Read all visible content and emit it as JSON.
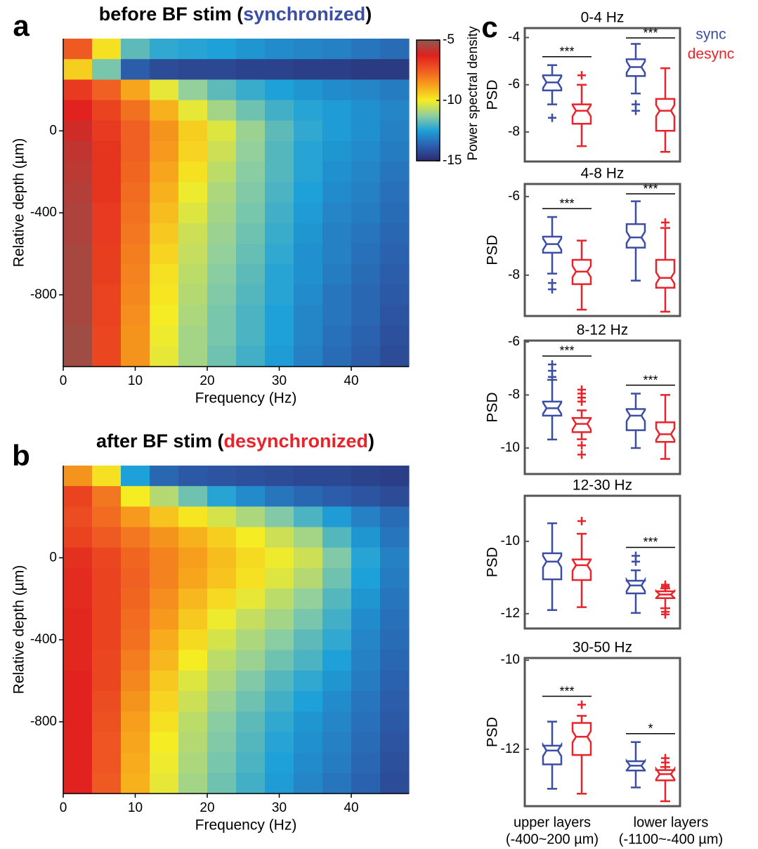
{
  "chart_data": [
    {
      "type": "heatmap",
      "panel_label": "a",
      "title": [
        "before BF stim (",
        "synchronized",
        ")"
      ],
      "title_colors": [
        "#000000",
        "#3b4ea3",
        "#000000"
      ],
      "xlabel": "Frequency (Hz)",
      "ylabel": "Relative depth (µm)",
      "xlim": [
        0,
        48
      ],
      "xticks": [
        0,
        10,
        20,
        30,
        40
      ],
      "ylim": [
        -1150,
        450
      ],
      "yticks": [
        0,
        -400,
        -800
      ],
      "clim": [
        -15,
        -5
      ],
      "colormap": [
        "#2b2a6e",
        "#2c5fae",
        "#1ea0d8",
        "#8fcfa0",
        "#f6ec23",
        "#f7a21c",
        "#ef5a22",
        "#e0201e",
        "#8b5a50"
      ],
      "colorbar": {
        "label": "Power spectral density",
        "ticks": [
          -5,
          -10,
          -15
        ]
      },
      "x": [
        2,
        6,
        10,
        14,
        18,
        22,
        26,
        30,
        34,
        38,
        42,
        46
      ],
      "y": [
        400,
        300,
        200,
        100,
        0,
        -100,
        -200,
        -300,
        -400,
        -500,
        -600,
        -700,
        -800,
        -900,
        -1000,
        -1100
      ],
      "z": [
        [
          -7.5,
          -9.8,
          -11.8,
          -12.3,
          -12.4,
          -12.5,
          -12.7,
          -12.9,
          -13.0,
          -13.1,
          -13.3,
          -13.5
        ],
        [
          -9.5,
          -11.5,
          -13.8,
          -14.2,
          -14.3,
          -14.3,
          -14.4,
          -14.4,
          -14.5,
          -14.5,
          -14.6,
          -14.6
        ],
        [
          -6.8,
          -7.6,
          -8.8,
          -10.2,
          -11.2,
          -11.8,
          -12.2,
          -12.5,
          -12.7,
          -12.9,
          -13.0,
          -13.2
        ],
        [
          -6.3,
          -7.0,
          -7.9,
          -9.0,
          -10.2,
          -11.0,
          -11.6,
          -12.1,
          -12.4,
          -12.6,
          -12.8,
          -13.0
        ],
        [
          -6.0,
          -6.8,
          -7.6,
          -8.5,
          -9.5,
          -10.3,
          -11.1,
          -11.8,
          -12.3,
          -12.6,
          -12.8,
          -13.1
        ],
        [
          -5.8,
          -6.7,
          -7.6,
          -8.6,
          -9.6,
          -10.5,
          -11.2,
          -11.9,
          -12.4,
          -12.7,
          -12.9,
          -13.2
        ],
        [
          -5.7,
          -6.7,
          -7.7,
          -8.8,
          -9.8,
          -10.7,
          -11.3,
          -11.9,
          -12.4,
          -12.8,
          -13.0,
          -13.3
        ],
        [
          -5.6,
          -6.7,
          -7.8,
          -9.0,
          -10.1,
          -10.9,
          -11.4,
          -12.0,
          -12.5,
          -12.9,
          -13.1,
          -13.4
        ],
        [
          -5.5,
          -6.8,
          -7.9,
          -9.2,
          -10.3,
          -11.0,
          -11.5,
          -12.1,
          -12.6,
          -13.0,
          -13.2,
          -13.5
        ],
        [
          -5.5,
          -6.8,
          -8.0,
          -9.4,
          -10.5,
          -11.1,
          -11.6,
          -12.2,
          -12.7,
          -13.1,
          -13.3,
          -13.6
        ],
        [
          -5.4,
          -6.9,
          -8.1,
          -9.6,
          -10.6,
          -11.2,
          -11.7,
          -12.3,
          -12.8,
          -13.1,
          -13.4,
          -13.7
        ],
        [
          -5.4,
          -6.9,
          -8.2,
          -9.8,
          -10.7,
          -11.3,
          -11.8,
          -12.4,
          -12.8,
          -13.2,
          -13.5,
          -13.8
        ],
        [
          -5.4,
          -7.0,
          -8.3,
          -9.9,
          -10.8,
          -11.4,
          -11.9,
          -12.4,
          -12.9,
          -13.3,
          -13.6,
          -13.9
        ],
        [
          -5.4,
          -7.0,
          -8.4,
          -10.0,
          -10.9,
          -11.5,
          -12.0,
          -12.5,
          -13.0,
          -13.3,
          -13.6,
          -14.0
        ],
        [
          -5.3,
          -7.1,
          -8.5,
          -10.1,
          -11.0,
          -11.5,
          -12.0,
          -12.5,
          -13.0,
          -13.4,
          -13.7,
          -14.1
        ],
        [
          -5.3,
          -7.1,
          -8.5,
          -10.2,
          -11.0,
          -11.6,
          -12.1,
          -12.6,
          -13.1,
          -13.5,
          -13.8,
          -14.2
        ]
      ]
    },
    {
      "type": "heatmap",
      "panel_label": "b",
      "title": [
        "after BF stim (",
        "desynchronized",
        ")"
      ],
      "title_colors": [
        "#000000",
        "#e8232a",
        "#000000"
      ],
      "xlabel": "Frequency (Hz)",
      "ylabel": "Relative depth (µm)",
      "xlim": [
        0,
        48
      ],
      "xticks": [
        0,
        10,
        20,
        30,
        40
      ],
      "ylim": [
        -1150,
        450
      ],
      "yticks": [
        0,
        -400,
        -800
      ],
      "clim": [
        -15,
        -5
      ],
      "colormap": [
        "#2b2a6e",
        "#2c5fae",
        "#1ea0d8",
        "#8fcfa0",
        "#f6ec23",
        "#f7a21c",
        "#ef5a22",
        "#e0201e",
        "#8b5a50"
      ],
      "x": [
        2,
        6,
        10,
        14,
        18,
        22,
        26,
        30,
        34,
        38,
        42,
        46
      ],
      "y": [
        400,
        300,
        200,
        100,
        0,
        -100,
        -200,
        -300,
        -400,
        -500,
        -600,
        -700,
        -800,
        -900,
        -1000,
        -1100
      ],
      "z": [
        [
          -8.5,
          -9.8,
          -12.5,
          -13.6,
          -13.9,
          -14.0,
          -14.1,
          -14.2,
          -14.3,
          -14.3,
          -14.4,
          -14.5
        ],
        [
          -7.0,
          -8.0,
          -10.0,
          -10.8,
          -11.6,
          -12.4,
          -12.9,
          -13.3,
          -13.6,
          -13.8,
          -14.0,
          -14.2
        ],
        [
          -7.2,
          -7.8,
          -8.6,
          -9.3,
          -9.9,
          -10.4,
          -10.9,
          -11.4,
          -12.0,
          -12.6,
          -13.1,
          -13.5
        ],
        [
          -7.0,
          -7.5,
          -8.0,
          -8.5,
          -9.0,
          -9.5,
          -10.0,
          -10.5,
          -11.0,
          -11.9,
          -12.7,
          -13.3
        ],
        [
          -6.6,
          -7.1,
          -7.7,
          -8.2,
          -8.7,
          -9.2,
          -9.7,
          -10.1,
          -10.5,
          -11.4,
          -12.4,
          -13.1
        ],
        [
          -6.5,
          -7.0,
          -7.6,
          -8.2,
          -8.8,
          -9.3,
          -9.8,
          -10.3,
          -10.8,
          -11.6,
          -12.5,
          -13.2
        ],
        [
          -6.5,
          -7.0,
          -7.7,
          -8.4,
          -9.1,
          -9.7,
          -10.2,
          -10.7,
          -11.2,
          -11.9,
          -12.7,
          -13.3
        ],
        [
          -6.4,
          -7.0,
          -7.8,
          -8.6,
          -9.4,
          -10.1,
          -10.6,
          -11.0,
          -11.5,
          -12.1,
          -12.9,
          -13.4
        ],
        [
          -6.4,
          -7.0,
          -7.9,
          -8.9,
          -9.7,
          -10.4,
          -10.9,
          -11.3,
          -11.8,
          -12.3,
          -13.0,
          -13.5
        ],
        [
          -6.4,
          -7.1,
          -8.1,
          -9.1,
          -10.0,
          -10.7,
          -11.1,
          -11.6,
          -12.0,
          -12.5,
          -13.1,
          -13.6
        ],
        [
          -6.3,
          -7.1,
          -8.3,
          -9.4,
          -10.3,
          -10.9,
          -11.4,
          -11.9,
          -12.3,
          -12.7,
          -13.2,
          -13.7
        ],
        [
          -6.3,
          -7.2,
          -8.5,
          -9.6,
          -10.5,
          -11.1,
          -11.6,
          -12.1,
          -12.5,
          -12.9,
          -13.3,
          -13.8
        ],
        [
          -6.3,
          -7.3,
          -8.7,
          -9.8,
          -10.7,
          -11.3,
          -11.8,
          -12.3,
          -12.7,
          -13.0,
          -13.4,
          -13.9
        ],
        [
          -6.3,
          -7.4,
          -8.8,
          -10.0,
          -10.8,
          -11.4,
          -11.9,
          -12.4,
          -12.8,
          -13.1,
          -13.5,
          -14.0
        ],
        [
          -6.3,
          -7.4,
          -8.9,
          -10.1,
          -10.9,
          -11.5,
          -12.0,
          -12.5,
          -12.9,
          -13.2,
          -13.6,
          -14.1
        ],
        [
          -6.3,
          -7.5,
          -9.0,
          -10.2,
          -11.0,
          -11.6,
          -12.1,
          -12.6,
          -13.0,
          -13.3,
          -13.7,
          -14.2
        ]
      ]
    },
    {
      "type": "box",
      "panel_label": "c",
      "title": "0-4 Hz",
      "ylabel": "PSD",
      "ylim": [
        -9.25,
        -3.6
      ],
      "yticks": [
        -8,
        -6,
        -4
      ],
      "significance": [
        "***",
        "***"
      ],
      "series": [
        {
          "name": "sync",
          "color": "#3b4ea3",
          "boxes": [
            {
              "whislo": -6.83,
              "q1": -6.24,
              "med": -5.9,
              "q3": -5.6,
              "whishi": -5.17,
              "fliers": [
                -7.4
              ]
            },
            {
              "whislo": -6.37,
              "q1": -5.63,
              "med": -5.25,
              "q3": -4.92,
              "whishi": -4.27,
              "fliers": [
                -6.83,
                -7.1
              ]
            }
          ]
        },
        {
          "name": "desync",
          "color": "#e8232a",
          "boxes": [
            {
              "whislo": -8.6,
              "q1": -7.65,
              "med": -7.1,
              "q3": -6.83,
              "whishi": -6.0,
              "fliers": [
                -5.6
              ]
            },
            {
              "whislo": -8.84,
              "q1": -7.95,
              "med": -7.1,
              "q3": -6.6,
              "whishi": -5.3,
              "fliers": []
            }
          ]
        }
      ]
    },
    {
      "type": "box",
      "title": "4-8 Hz",
      "ylabel": "PSD",
      "ylim": [
        -9.04,
        -5.68
      ],
      "yticks": [
        -8,
        -6
      ],
      "significance": [
        "***",
        "***"
      ],
      "series": [
        {
          "color": "#3b4ea3",
          "boxes": [
            {
              "whislo": -7.96,
              "q1": -7.43,
              "med": -7.21,
              "q3": -7.02,
              "whishi": -6.52,
              "fliers": [
                -8.2,
                -8.36
              ]
            },
            {
              "whislo": -8.14,
              "q1": -7.3,
              "med": -7.04,
              "q3": -6.7,
              "whishi": -6.12,
              "fliers": []
            }
          ]
        },
        {
          "color": "#e8232a",
          "boxes": [
            {
              "whislo": -8.88,
              "q1": -8.23,
              "med": -7.91,
              "q3": -7.61,
              "whishi": -7.12,
              "fliers": []
            },
            {
              "whislo": -8.93,
              "q1": -8.32,
              "med": -8.07,
              "q3": -7.61,
              "whishi": -6.8,
              "fliers": [
                -6.66
              ]
            }
          ]
        }
      ]
    },
    {
      "type": "box",
      "title": "8-12 Hz",
      "ylabel": "PSD",
      "ylim": [
        -10.98,
        -5.95
      ],
      "yticks": [
        -10,
        -8,
        -6
      ],
      "significance": [
        "***",
        "***"
      ],
      "series": [
        {
          "color": "#3b4ea3",
          "boxes": [
            {
              "whislo": -9.68,
              "q1": -8.78,
              "med": -8.5,
              "q3": -8.25,
              "whishi": -7.43,
              "fliers": [
                -6.85,
                -7.09,
                -7.32
              ]
            },
            {
              "whislo": -10.0,
              "q1": -9.33,
              "med": -8.78,
              "q3": -8.53,
              "whishi": -7.95,
              "fliers": []
            }
          ]
        },
        {
          "color": "#e8232a",
          "boxes": [
            {
              "whislo": -9.67,
              "q1": -9.4,
              "med": -9.09,
              "q3": -8.87,
              "whishi": -8.58,
              "fliers": [
                -7.8,
                -7.95,
                -8.1,
                -8.25,
                -9.9,
                -10.25
              ]
            },
            {
              "whislo": -10.41,
              "q1": -9.77,
              "med": -9.48,
              "q3": -9.03,
              "whishi": -8.0,
              "fliers": []
            }
          ]
        }
      ]
    },
    {
      "type": "box",
      "title": "12-30 Hz",
      "ylabel": "PSD",
      "ylim": [
        -12.41,
        -8.74
      ],
      "yticks": [
        -12,
        -10
      ],
      "significance": [
        null,
        "***"
      ],
      "series": [
        {
          "color": "#3b4ea3",
          "boxes": [
            {
              "whislo": -11.9,
              "q1": -11.05,
              "med": -10.56,
              "q3": -10.33,
              "whishi": -9.5,
              "fliers": []
            },
            {
              "whislo": -11.98,
              "q1": -11.44,
              "med": -11.22,
              "q3": -11.09,
              "whishi": -10.8,
              "fliers": [
                -10.4,
                -10.56
              ]
            }
          ]
        },
        {
          "color": "#e8232a",
          "boxes": [
            {
              "whislo": -11.82,
              "q1": -11.07,
              "med": -10.66,
              "q3": -10.5,
              "whishi": -9.79,
              "fliers": [
                -9.44
              ]
            },
            {
              "whislo": -11.85,
              "q1": -11.57,
              "med": -11.47,
              "q3": -11.38,
              "whishi": -11.3,
              "fliers": [
                -11.2,
                -11.25,
                -11.95,
                -12.02
              ]
            }
          ]
        }
      ]
    },
    {
      "type": "box",
      "title": "30-50 Hz",
      "ylabel": "PSD",
      "ylim": [
        -13.28,
        -9.95
      ],
      "yticks": [
        -12,
        -10
      ],
      "significance": [
        "***",
        "*"
      ],
      "categories": [
        [
          "upper layers",
          "(-400~200 µm)"
        ],
        [
          "lower layers",
          "(-1100~-400 µm)"
        ]
      ],
      "series": [
        {
          "color": "#3b4ea3",
          "boxes": [
            {
              "whislo": -12.89,
              "q1": -12.34,
              "med": -12.03,
              "q3": -11.92,
              "whishi": -11.38,
              "fliers": []
            },
            {
              "whislo": -12.86,
              "q1": -12.48,
              "med": -12.37,
              "q3": -12.27,
              "whishi": -11.84,
              "fliers": []
            }
          ]
        },
        {
          "color": "#e8232a",
          "boxes": [
            {
              "whislo": -13.0,
              "q1": -12.13,
              "med": -11.72,
              "q3": -11.41,
              "whishi": -11.25,
              "fliers": [
                -11.0
              ]
            },
            {
              "whislo": -13.17,
              "q1": -12.7,
              "med": -12.56,
              "q3": -12.47,
              "whishi": -12.4,
              "fliers": [
                -12.2,
                -12.3
              ]
            }
          ]
        }
      ]
    }
  ]
}
